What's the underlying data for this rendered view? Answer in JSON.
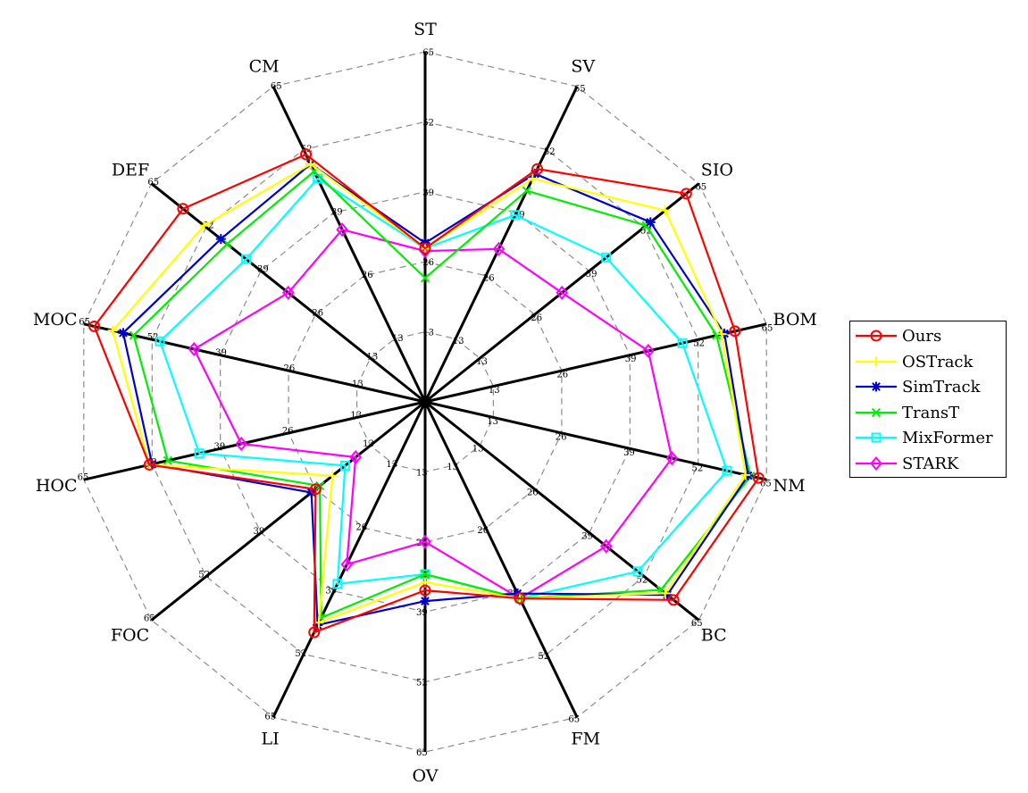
{
  "chart_data": {
    "type": "radar",
    "axes": [
      "ST",
      "SV",
      "SIO",
      "BOM",
      "NM",
      "BC",
      "FM",
      "OV",
      "LI",
      "FOC",
      "HOC",
      "MOC",
      "DEF",
      "CM"
    ],
    "ticks": [
      "13",
      "26",
      "39",
      "52",
      "65"
    ],
    "rmax": 65,
    "grid": true,
    "legend_position": "right",
    "series": [
      {
        "name": "Ours",
        "color": "#ff0000",
        "marker": "circle",
        "values": [
          28.5,
          48.0,
          62.0,
          59.0,
          63.5,
          59.0,
          40.5,
          35.0,
          47.5,
          26.0,
          52.5,
          63.0,
          57.5,
          51.0
        ]
      },
      {
        "name": "OSTrack",
        "color": "#ffff00",
        "marker": "plus",
        "values": [
          28.5,
          46.0,
          57.0,
          56.5,
          61.0,
          57.0,
          40.5,
          33.5,
          45.5,
          22.0,
          52.5,
          59.5,
          52.5,
          49.0
        ]
      },
      {
        "name": "SimTrack",
        "color": "#0000cc",
        "marker": "asterisk",
        "values": [
          29.5,
          47.0,
          53.5,
          57.0,
          61.5,
          57.5,
          39.5,
          37.0,
          46.0,
          27.0,
          52.0,
          57.5,
          48.5,
          49.0
        ]
      },
      {
        "name": "TransT",
        "color": "#00ee00",
        "marker": "cross",
        "values": [
          23.0,
          43.5,
          52.5,
          55.5,
          62.0,
          56.0,
          40.5,
          32.0,
          44.5,
          25.0,
          49.0,
          55.5,
          47.0,
          47.5
        ]
      },
      {
        "name": "MixFormer",
        "color": "#00ffff",
        "marker": "square",
        "values": [
          28.5,
          38.5,
          43.0,
          49.0,
          57.5,
          50.5,
          40.5,
          32.0,
          37.5,
          19.0,
          43.0,
          50.5,
          42.5,
          46.0
        ]
      },
      {
        "name": "STARK",
        "color": "#ff00ff",
        "marker": "diamond",
        "values": [
          28.0,
          31.5,
          32.5,
          42.5,
          47.0,
          43.0,
          40.5,
          26.0,
          33.5,
          16.5,
          35.0,
          44.0,
          32.5,
          35.5
        ]
      }
    ]
  }
}
